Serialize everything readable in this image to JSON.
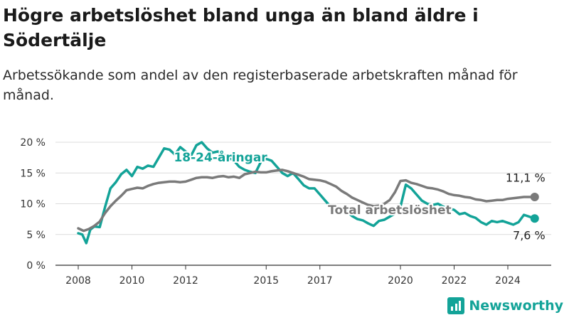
{
  "title": "Högre arbetslöshet bland unga än bland äldre i Södertälje",
  "subtitle": "Arbetssökande som andel av den registerbaserade arbetskraften månad för månad.",
  "brand": {
    "name": "Newsworthy",
    "color": "#13a398",
    "icon": "bar-chart-logo-icon"
  },
  "chart_data": {
    "type": "line",
    "title": "Högre arbetslöshet bland unga än bland äldre i Södertälje",
    "subtitle": "Arbetssökande som andel av den registerbaserade arbetskraften månad för månad.",
    "xlabel": "",
    "ylabel": "",
    "xlim": [
      2008.0,
      2025.4
    ],
    "ylim": [
      0,
      20
    ],
    "x_ticks": [
      2008,
      2010,
      2012,
      2015,
      2017,
      2020,
      2022,
      2024
    ],
    "x_tick_labels": [
      "2008",
      "2010",
      "2012",
      "2015",
      "2017",
      "2020",
      "2022",
      "2024"
    ],
    "y_ticks": [
      0,
      5,
      10,
      15,
      20
    ],
    "y_tick_labels": [
      "0 %",
      "5 %",
      "10 %",
      "15 %",
      "20 %"
    ],
    "grid": true,
    "legend": "inline labels",
    "series": [
      {
        "name": "Total arbetslöshet",
        "color": "#7a7a7a",
        "end_label": "11,1 %",
        "x": [
          2008.0,
          2008.2,
          2008.4,
          2008.6,
          2008.8,
          2009.0,
          2009.2,
          2009.4,
          2009.6,
          2009.8,
          2010.0,
          2010.2,
          2010.4,
          2010.6,
          2010.8,
          2011.0,
          2011.2,
          2011.4,
          2011.6,
          2011.8,
          2012.0,
          2012.2,
          2012.4,
          2012.6,
          2012.8,
          2013.0,
          2013.2,
          2013.4,
          2013.6,
          2013.8,
          2014.0,
          2014.2,
          2014.4,
          2014.6,
          2014.8,
          2015.0,
          2015.2,
          2015.4,
          2015.6,
          2015.8,
          2016.0,
          2016.2,
          2016.4,
          2016.6,
          2016.8,
          2017.0,
          2017.2,
          2017.4,
          2017.6,
          2017.8,
          2018.0,
          2018.2,
          2018.4,
          2018.6,
          2018.8,
          2019.0,
          2019.2,
          2019.4,
          2019.6,
          2019.8,
          2020.0,
          2020.2,
          2020.4,
          2020.6,
          2020.8,
          2021.0,
          2021.2,
          2021.4,
          2021.6,
          2021.8,
          2022.0,
          2022.2,
          2022.4,
          2022.6,
          2022.8,
          2023.0,
          2023.2,
          2023.4,
          2023.6,
          2023.8,
          2024.0,
          2024.2,
          2024.4,
          2024.6,
          2024.8,
          2025.0
        ],
        "values": [
          6.0,
          5.6,
          5.9,
          6.4,
          7.1,
          8.5,
          9.6,
          10.5,
          11.3,
          12.2,
          12.4,
          12.6,
          12.5,
          12.9,
          13.2,
          13.4,
          13.5,
          13.6,
          13.6,
          13.5,
          13.6,
          13.9,
          14.2,
          14.3,
          14.3,
          14.2,
          14.4,
          14.5,
          14.3,
          14.4,
          14.2,
          14.8,
          15.0,
          15.2,
          15.1,
          15.1,
          15.3,
          15.4,
          15.5,
          15.3,
          15.0,
          14.7,
          14.4,
          14.0,
          13.9,
          13.8,
          13.6,
          13.2,
          12.8,
          12.1,
          11.6,
          11.0,
          10.6,
          10.2,
          9.8,
          9.6,
          9.7,
          10.0,
          10.6,
          11.9,
          13.7,
          13.8,
          13.4,
          13.2,
          12.9,
          12.6,
          12.5,
          12.3,
          12.0,
          11.6,
          11.4,
          11.3,
          11.1,
          11.0,
          10.7,
          10.6,
          10.4,
          10.5,
          10.6,
          10.6,
          10.8,
          10.9,
          11.0,
          11.1,
          11.1,
          11.1
        ]
      },
      {
        "name": "18-24-åringar",
        "color": "#13a398",
        "end_label": "7,6 %",
        "x": [
          2008.0,
          2008.15,
          2008.3,
          2008.45,
          2008.6,
          2008.8,
          2009.0,
          2009.2,
          2009.4,
          2009.6,
          2009.8,
          2010.0,
          2010.2,
          2010.4,
          2010.6,
          2010.8,
          2011.0,
          2011.2,
          2011.4,
          2011.6,
          2011.8,
          2012.0,
          2012.2,
          2012.4,
          2012.6,
          2012.8,
          2013.0,
          2013.2,
          2013.4,
          2013.6,
          2013.8,
          2014.0,
          2014.2,
          2014.4,
          2014.6,
          2014.8,
          2015.0,
          2015.2,
          2015.4,
          2015.6,
          2015.8,
          2016.0,
          2016.2,
          2016.4,
          2016.6,
          2016.8,
          2017.0,
          2017.2,
          2017.4,
          2017.6,
          2017.8,
          2018.0,
          2018.2,
          2018.4,
          2018.6,
          2018.8,
          2019.0,
          2019.2,
          2019.4,
          2019.6,
          2019.8,
          2020.0,
          2020.2,
          2020.4,
          2020.6,
          2020.8,
          2021.0,
          2021.2,
          2021.4,
          2021.6,
          2021.8,
          2022.0,
          2022.2,
          2022.4,
          2022.6,
          2022.8,
          2023.0,
          2023.2,
          2023.4,
          2023.6,
          2023.8,
          2024.0,
          2024.2,
          2024.4,
          2024.6,
          2024.8,
          2025.0
        ],
        "values": [
          5.2,
          5.0,
          3.6,
          5.8,
          6.3,
          6.2,
          9.5,
          12.5,
          13.5,
          14.8,
          15.5,
          14.5,
          16.0,
          15.7,
          16.2,
          16.0,
          17.5,
          19.0,
          18.8,
          18.0,
          19.2,
          18.5,
          17.8,
          19.5,
          20.0,
          19.0,
          18.3,
          18.5,
          18.0,
          17.5,
          17.0,
          16.0,
          15.5,
          15.2,
          15.0,
          16.8,
          17.3,
          17.0,
          16.0,
          15.0,
          14.5,
          15.0,
          14.0,
          13.0,
          12.5,
          12.5,
          11.5,
          10.5,
          9.5,
          8.8,
          8.5,
          8.8,
          8.0,
          7.5,
          7.3,
          6.8,
          6.4,
          7.2,
          7.4,
          7.9,
          8.4,
          9.5,
          13.1,
          12.5,
          11.5,
          10.5,
          10.0,
          9.8,
          10.0,
          9.5,
          9.3,
          9.0,
          8.3,
          8.5,
          8.0,
          7.7,
          7.0,
          6.6,
          7.2,
          7.0,
          7.2,
          6.9,
          6.6,
          7.0,
          8.2,
          7.9,
          7.6
        ]
      }
    ]
  }
}
